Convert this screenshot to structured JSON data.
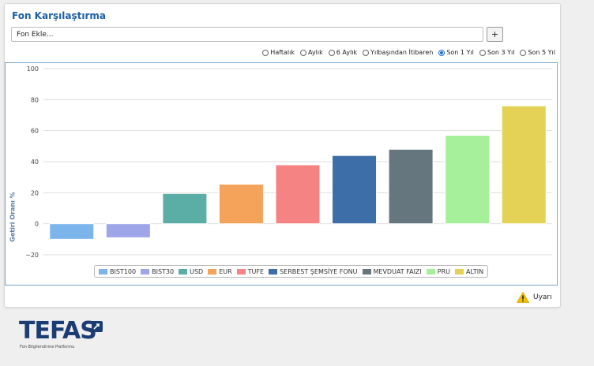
{
  "panel": {
    "title": "Fon Karşılaştırma",
    "fund_input": {
      "value": "",
      "placeholder": "Fon Ekle..."
    },
    "add_button_label": "+",
    "periods": [
      {
        "label": "Haftalık",
        "selected": false
      },
      {
        "label": "Aylık",
        "selected": false
      },
      {
        "label": "6 Aylık",
        "selected": false
      },
      {
        "label": "Yılbaşından İtibaren",
        "selected": false
      },
      {
        "label": "Son 1 Yıl",
        "selected": true
      },
      {
        "label": "Son 3 Yıl",
        "selected": false
      },
      {
        "label": "Son 5 Yıl",
        "selected": false
      }
    ]
  },
  "chart_data": {
    "type": "bar",
    "ylabel": "Getiri Oranı %",
    "ylim": [
      -20,
      100
    ],
    "yticks": [
      "100",
      "80",
      "60",
      "40",
      "20",
      "0",
      "−20"
    ],
    "ytick_values": [
      100,
      80,
      60,
      40,
      20,
      0,
      -20
    ],
    "grid": true,
    "legend_position": "bottom",
    "series": [
      {
        "name": "BIST100",
        "value": -10,
        "color": "#7cb5ec"
      },
      {
        "name": "BIST30",
        "value": -9,
        "color": "#9ea5e8"
      },
      {
        "name": "USD",
        "value": 19.5,
        "color": "#5aaea6"
      },
      {
        "name": "EUR",
        "value": 25.5,
        "color": "#f5a35b"
      },
      {
        "name": "TUFE",
        "value": 38,
        "color": "#f68383"
      },
      {
        "name": "SERBEST ŞEMSİYE FONU",
        "value": 44,
        "color": "#3e6ea7"
      },
      {
        "name": "MEVDUAT FAIZI",
        "value": 48,
        "color": "#66767e"
      },
      {
        "name": "PRU",
        "value": 57,
        "color": "#a6ef9b"
      },
      {
        "name": "ALTIN",
        "value": 76,
        "color": "#e3d255"
      }
    ]
  },
  "warning": {
    "label": "Uyarı",
    "icon": "warning-icon"
  },
  "logo": {
    "text": "TEFAS",
    "subtitle": "Fon Bilgilendirme Platformu"
  }
}
